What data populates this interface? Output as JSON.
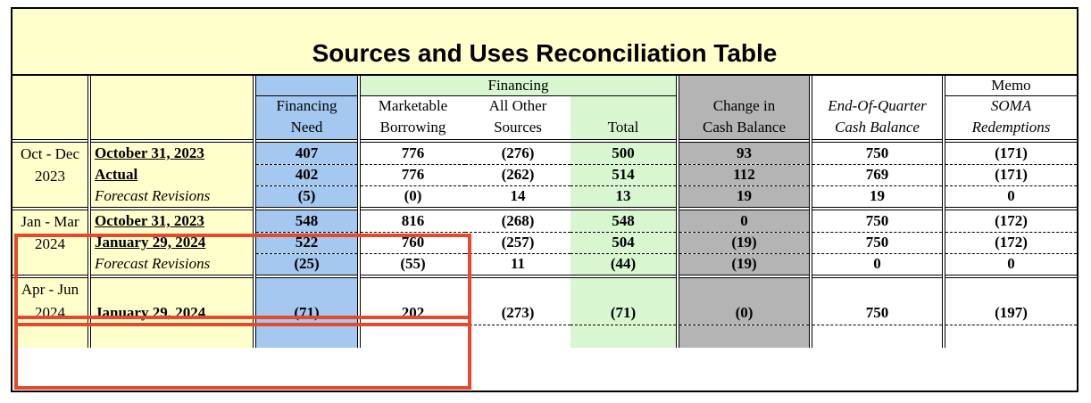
{
  "title": "Sources and Uses Reconciliation Table",
  "header": {
    "financing_group": "Financing",
    "memo_group": "Memo",
    "col_financing_need": [
      "Financing",
      "Need"
    ],
    "col_marketable_borrowing": [
      "Marketable",
      "Borrowing"
    ],
    "col_all_other_sources": [
      "All Other",
      "Sources"
    ],
    "col_total": "Total",
    "col_change_cash": [
      "Change in",
      "Cash Balance"
    ],
    "col_end_quarter": [
      "End-Of-Quarter",
      "Cash Balance"
    ],
    "col_soma": [
      "SOMA",
      "Redemptions"
    ]
  },
  "groups": [
    {
      "period": [
        "Oct - Dec",
        "2023"
      ],
      "rows": [
        {
          "label": "October 31, 2023",
          "style": "bold",
          "values": [
            "407",
            "776",
            "(276)",
            "500",
            "93",
            "750",
            "(171)"
          ]
        },
        {
          "label": "Actual",
          "style": "bold",
          "values": [
            "402",
            "776",
            "(262)",
            "514",
            "112",
            "769",
            "(171)"
          ]
        },
        {
          "label": "Forecast Revisions",
          "style": "italic",
          "values": [
            "(5)",
            "(0)",
            "14",
            "13",
            "19",
            "19",
            "0"
          ]
        }
      ]
    },
    {
      "period": [
        "Jan - Mar",
        "2024"
      ],
      "rows": [
        {
          "label": "October 31, 2023",
          "style": "bold",
          "values": [
            "548",
            "816",
            "(268)",
            "548",
            "0",
            "750",
            "(172)"
          ]
        },
        {
          "label": "January 29, 2024",
          "style": "bold",
          "values": [
            "522",
            "760",
            "(257)",
            "504",
            "(19)",
            "750",
            "(172)"
          ]
        },
        {
          "label": "Forecast Revisions",
          "style": "italic",
          "values": [
            "(25)",
            "(55)",
            "11",
            "(44)",
            "(19)",
            "0",
            "0"
          ]
        }
      ]
    },
    {
      "period": [
        "Apr - Jun",
        "2024"
      ],
      "rows": [
        {
          "label": "January 29, 2024",
          "style": "bold",
          "values": [
            "(71)",
            "202",
            "(273)",
            "(71)",
            "(0)",
            "750",
            "(197)"
          ]
        }
      ]
    }
  ],
  "colors": {
    "title_bg": "#ffffcc",
    "financing_need_bg": "#a4c8f0",
    "financing_bg": "#d8f7d0",
    "change_cash_bg": "#b4b4b4",
    "highlight_border": "#e34a2e"
  }
}
